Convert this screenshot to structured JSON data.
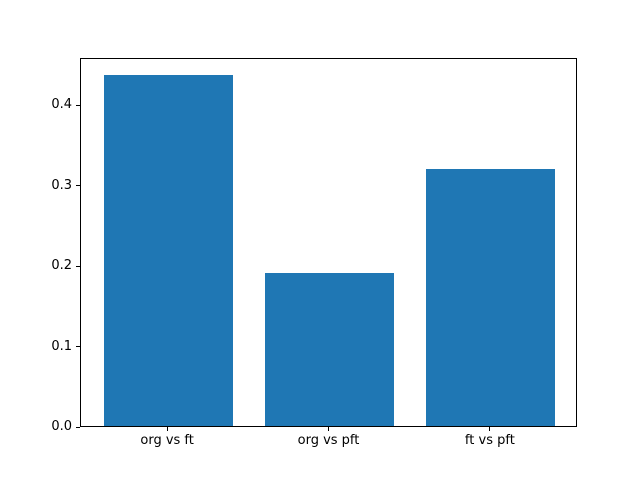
{
  "chart_data": {
    "type": "bar",
    "title": "",
    "xlabel": "",
    "ylabel": "",
    "categories": [
      "org vs ft",
      "org vs pft",
      "ft vs pft"
    ],
    "values": [
      0.437,
      0.19,
      0.32
    ],
    "ytick_labels": [
      "0.0",
      "0.1",
      "0.2",
      "0.3",
      "0.4"
    ],
    "ytick_values": [
      0.0,
      0.1,
      0.2,
      0.3,
      0.4
    ],
    "ylim": [
      0,
      0.4588
    ],
    "xlim": [
      -0.54,
      2.54
    ],
    "bar_width": 0.8,
    "bar_color": "#1f77b4",
    "spine_color": "#000000",
    "background_color": "#ffffff",
    "grid": false,
    "legend": "none"
  }
}
